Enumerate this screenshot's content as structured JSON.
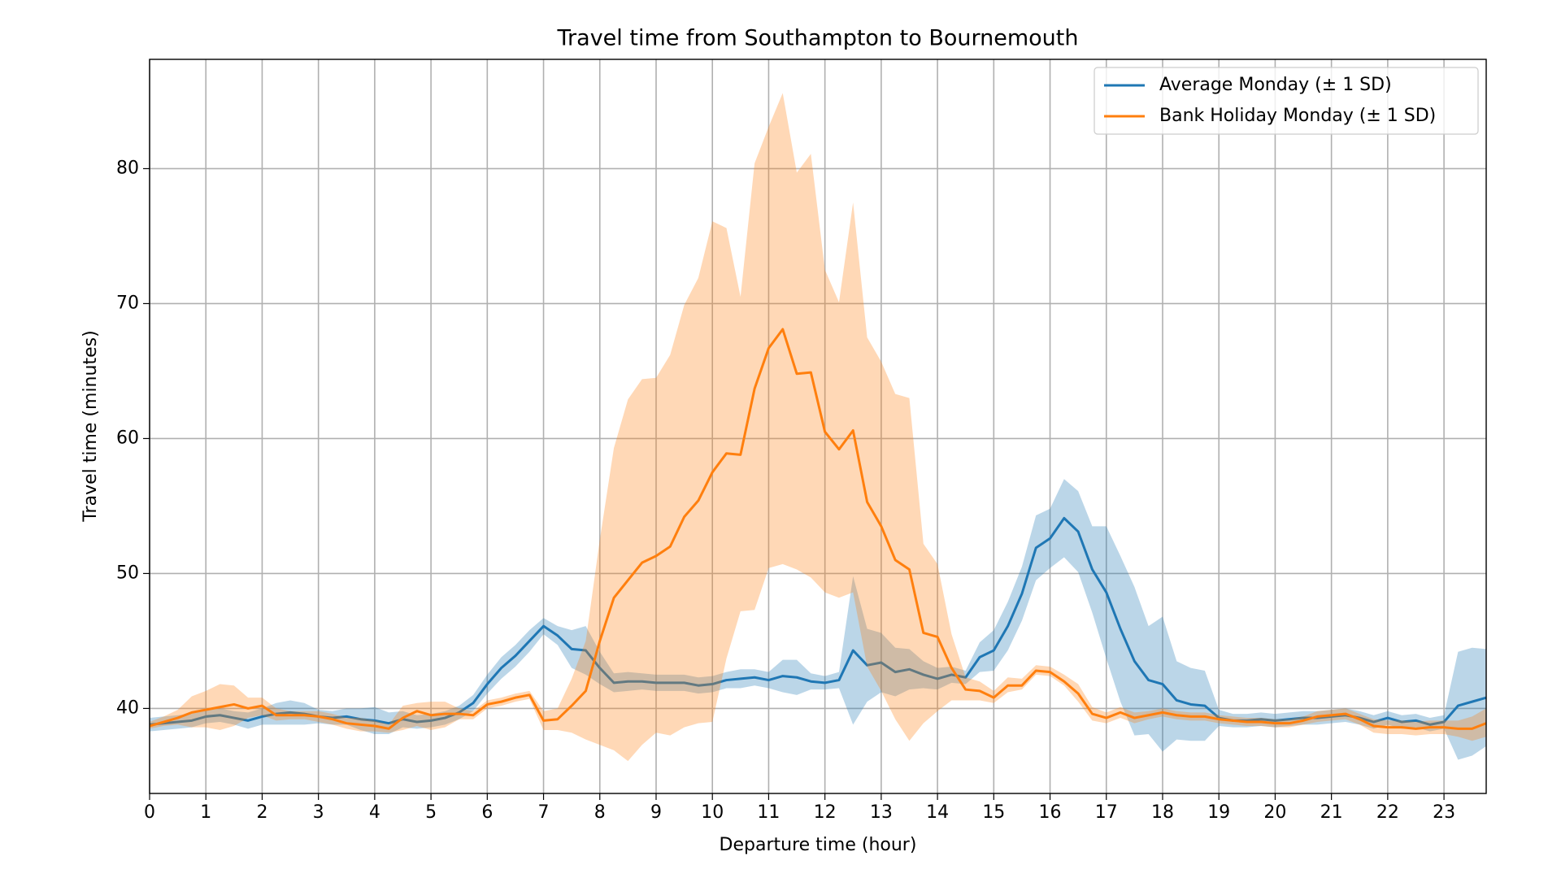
{
  "chart_data": {
    "type": "line_band",
    "title": "Travel time from Southampton to Bournemouth",
    "x_label": "Departure time (hour)",
    "y_label": "Travel time (minutes)",
    "x": [
      0,
      0.25,
      0.5,
      0.75,
      1,
      1.25,
      1.5,
      1.75,
      2,
      2.25,
      2.5,
      2.75,
      3,
      3.25,
      3.5,
      3.75,
      4,
      4.25,
      4.5,
      4.75,
      5,
      5.25,
      5.5,
      5.75,
      6,
      6.25,
      6.5,
      6.75,
      7,
      7.25,
      7.5,
      7.75,
      8,
      8.25,
      8.5,
      8.75,
      9,
      9.25,
      9.5,
      9.75,
      10,
      10.25,
      10.5,
      10.75,
      11,
      11.25,
      11.5,
      11.75,
      12,
      12.25,
      12.5,
      12.75,
      13,
      13.25,
      13.5,
      13.75,
      14,
      14.25,
      14.5,
      14.75,
      15,
      15.25,
      15.5,
      15.75,
      16,
      16.25,
      16.5,
      16.75,
      17,
      17.25,
      17.5,
      17.75,
      18,
      18.25,
      18.5,
      18.75,
      19,
      19.25,
      19.5,
      19.75,
      20,
      20.25,
      20.5,
      20.75,
      21,
      21.25,
      21.5,
      21.75,
      22,
      22.25,
      22.5,
      22.75,
      23,
      23.25,
      23.5,
      23.75
    ],
    "series": [
      {
        "name": "Average Monday (± 1 SD)",
        "color": "#1f77b4",
        "values": [
          38.8,
          38.9,
          39.0,
          39.1,
          39.4,
          39.5,
          39.3,
          39.1,
          39.4,
          39.6,
          39.7,
          39.6,
          39.4,
          39.3,
          39.4,
          39.2,
          39.1,
          38.9,
          39.2,
          39.0,
          39.1,
          39.3,
          39.7,
          40.4,
          41.8,
          43.0,
          43.9,
          45.0,
          46.1,
          45.4,
          44.4,
          44.3,
          43.0,
          41.9,
          42.0,
          42.0,
          41.9,
          41.9,
          41.9,
          41.7,
          41.8,
          42.1,
          42.2,
          42.3,
          42.1,
          42.4,
          42.3,
          42.0,
          41.9,
          42.1,
          44.3,
          43.2,
          43.4,
          42.7,
          42.9,
          42.5,
          42.2,
          42.5,
          42.3,
          43.8,
          44.3,
          46.1,
          48.5,
          51.9,
          52.6,
          54.1,
          53.1,
          50.3,
          48.6,
          45.9,
          43.5,
          42.1,
          41.8,
          40.6,
          40.3,
          40.2,
          39.3,
          39.1,
          39.1,
          39.2,
          39.1,
          39.2,
          39.3,
          39.3,
          39.4,
          39.5,
          39.3,
          39.0,
          39.3,
          39.0,
          39.1,
          38.8,
          39.0,
          40.2,
          40.5,
          40.8
        ],
        "lower": [
          38.3,
          38.4,
          38.5,
          38.6,
          38.9,
          39.0,
          38.8,
          38.5,
          38.8,
          38.8,
          38.8,
          38.8,
          38.9,
          38.8,
          38.8,
          38.4,
          38.1,
          38.1,
          38.6,
          38.5,
          38.6,
          38.8,
          39.2,
          39.8,
          41.1,
          42.2,
          43.1,
          44.2,
          45.5,
          44.7,
          43.0,
          42.5,
          41.8,
          41.2,
          41.3,
          41.4,
          41.3,
          41.3,
          41.3,
          41.1,
          41.2,
          41.5,
          41.5,
          41.7,
          41.5,
          41.2,
          41.0,
          41.4,
          41.4,
          41.5,
          38.8,
          40.5,
          41.2,
          40.9,
          41.4,
          41.5,
          41.4,
          41.9,
          41.8,
          42.7,
          42.8,
          44.3,
          46.5,
          49.5,
          50.4,
          51.2,
          50.1,
          47.1,
          43.7,
          40.5,
          38.0,
          38.1,
          36.8,
          37.7,
          37.6,
          37.6,
          38.7,
          38.6,
          38.6,
          38.7,
          38.6,
          38.7,
          38.8,
          38.8,
          38.9,
          39.0,
          38.8,
          38.5,
          38.8,
          38.5,
          38.6,
          38.3,
          38.5,
          36.2,
          36.5,
          37.2
        ],
        "upper": [
          39.3,
          39.4,
          39.5,
          39.6,
          39.9,
          40.0,
          39.8,
          39.7,
          40.0,
          40.4,
          40.6,
          40.4,
          39.9,
          39.8,
          40.0,
          40.0,
          40.1,
          39.7,
          39.8,
          39.5,
          39.6,
          39.8,
          40.2,
          41.0,
          42.5,
          43.8,
          44.7,
          45.8,
          46.7,
          46.1,
          45.8,
          46.1,
          44.2,
          42.6,
          42.7,
          42.6,
          42.5,
          42.5,
          42.5,
          42.3,
          42.4,
          42.7,
          42.9,
          42.9,
          42.7,
          43.6,
          43.6,
          42.6,
          42.4,
          42.7,
          49.8,
          45.9,
          45.6,
          44.5,
          44.4,
          43.5,
          43.0,
          43.1,
          42.8,
          44.9,
          45.8,
          47.9,
          50.5,
          54.3,
          54.8,
          57.0,
          56.1,
          53.5,
          53.5,
          51.3,
          49.0,
          46.1,
          46.8,
          43.5,
          43.0,
          42.8,
          39.9,
          39.6,
          39.6,
          39.7,
          39.6,
          39.7,
          39.8,
          39.8,
          39.9,
          40.0,
          39.8,
          39.5,
          39.8,
          39.5,
          39.6,
          39.3,
          39.5,
          44.2,
          44.5,
          44.4
        ]
      },
      {
        "name": "Bank Holiday Monday (± 1 SD)",
        "color": "#ff7f0e",
        "values": [
          38.7,
          39.0,
          39.3,
          39.7,
          39.9,
          40.1,
          40.3,
          40.0,
          40.2,
          39.5,
          39.5,
          39.5,
          39.4,
          39.2,
          38.9,
          38.8,
          38.7,
          38.5,
          39.3,
          39.8,
          39.5,
          39.6,
          39.6,
          39.5,
          40.3,
          40.5,
          40.8,
          41.0,
          39.1,
          39.2,
          40.2,
          41.3,
          45.0,
          48.2,
          49.5,
          50.8,
          51.3,
          52.0,
          54.2,
          55.4,
          57.5,
          58.9,
          58.8,
          63.7,
          66.7,
          68.1,
          64.8,
          64.9,
          60.5,
          59.2,
          60.6,
          55.3,
          53.5,
          51.0,
          50.3,
          45.6,
          45.3,
          43.0,
          41.4,
          41.3,
          40.8,
          41.7,
          41.7,
          42.8,
          42.7,
          42.0,
          41.1,
          39.6,
          39.3,
          39.7,
          39.3,
          39.5,
          39.7,
          39.5,
          39.4,
          39.4,
          39.2,
          39.1,
          39.0,
          39.0,
          38.9,
          38.9,
          39.1,
          39.4,
          39.5,
          39.6,
          39.2,
          38.7,
          38.6,
          38.6,
          38.5,
          38.6,
          38.6,
          38.5,
          38.5,
          38.9
        ],
        "lower": [
          38.5,
          38.7,
          38.8,
          38.6,
          38.6,
          38.4,
          38.7,
          39.3,
          39.5,
          39.1,
          39.2,
          39.2,
          39.0,
          38.8,
          38.5,
          38.3,
          38.3,
          38.2,
          38.4,
          38.7,
          38.4,
          38.6,
          39.2,
          39.2,
          40.0,
          40.2,
          40.5,
          40.7,
          38.4,
          38.4,
          38.2,
          37.7,
          37.3,
          36.9,
          36.1,
          37.3,
          38.2,
          38.0,
          38.6,
          38.9,
          39.0,
          43.7,
          47.2,
          47.3,
          50.4,
          50.7,
          50.3,
          49.7,
          48.6,
          48.2,
          48.6,
          43.1,
          41.3,
          39.2,
          37.6,
          38.9,
          39.8,
          40.6,
          40.6,
          40.6,
          40.4,
          41.2,
          41.4,
          42.5,
          42.4,
          41.7,
          40.5,
          39.1,
          38.9,
          39.3,
          38.9,
          39.2,
          39.4,
          39.2,
          39.1,
          39.1,
          38.9,
          38.8,
          38.7,
          38.7,
          38.6,
          38.6,
          38.8,
          39.0,
          39.1,
          39.2,
          38.8,
          38.2,
          38.1,
          38.1,
          38.0,
          38.1,
          38.1,
          37.9,
          37.6,
          37.9
        ],
        "upper": [
          39.0,
          39.4,
          39.9,
          40.9,
          41.3,
          41.8,
          41.7,
          40.8,
          40.8,
          40.0,
          39.8,
          39.8,
          39.8,
          39.6,
          39.3,
          39.3,
          39.1,
          38.8,
          40.2,
          40.4,
          40.5,
          40.5,
          40.0,
          39.8,
          40.6,
          40.8,
          41.1,
          41.3,
          39.8,
          40.0,
          42.2,
          45.0,
          52.5,
          59.3,
          62.9,
          64.4,
          64.5,
          66.2,
          69.9,
          71.9,
          76.1,
          75.6,
          70.5,
          80.4,
          83.1,
          85.6,
          79.7,
          81.1,
          72.5,
          70.1,
          77.5,
          67.5,
          65.7,
          63.3,
          63.0,
          52.2,
          50.7,
          45.5,
          42.3,
          42.0,
          41.3,
          42.3,
          42.2,
          43.2,
          43.1,
          42.5,
          41.8,
          40.1,
          39.7,
          40.1,
          39.7,
          39.8,
          40.0,
          39.8,
          39.7,
          39.7,
          39.5,
          39.4,
          39.3,
          39.3,
          39.2,
          39.2,
          39.4,
          39.8,
          39.9,
          40.0,
          39.6,
          39.2,
          39.1,
          39.1,
          39.0,
          39.1,
          39.1,
          39.1,
          39.4,
          40.0
        ]
      }
    ],
    "xlim": [
      0,
      23.75
    ],
    "ylim": [
      33.7,
      88.1
    ],
    "xticks": [
      0,
      1,
      2,
      3,
      4,
      5,
      6,
      7,
      8,
      9,
      10,
      11,
      12,
      13,
      14,
      15,
      16,
      17,
      18,
      19,
      20,
      21,
      22,
      23
    ],
    "yticks": [
      40,
      50,
      60,
      70,
      80
    ],
    "grid": true,
    "band_opacity": 0.3,
    "legend": "upper right"
  }
}
